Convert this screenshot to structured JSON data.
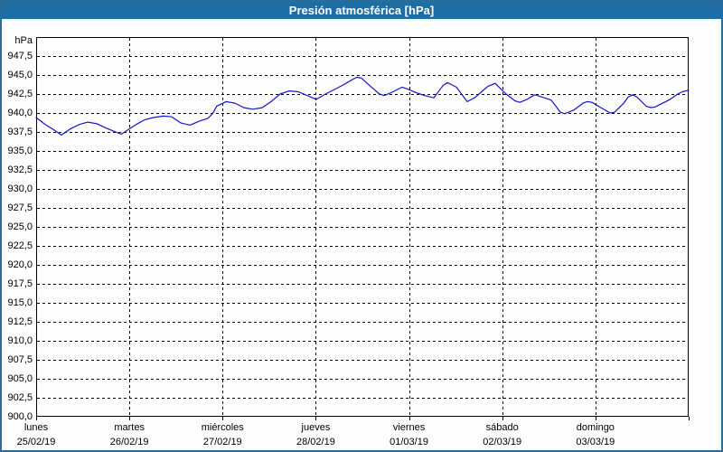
{
  "title_bar": {
    "text": "Presión atmosférica [hPa]"
  },
  "colors": {
    "title-bar-bg": "#1D6EA5",
    "title-text": "#FFFFFF",
    "window-border": "#2A6D9A",
    "window-bg": "#FDFEFD",
    "label-text": "#000000",
    "grid": "#000000",
    "line": "#1414C8"
  },
  "chart_data": {
    "type": "line",
    "title": "Presión atmosférica [hPa]",
    "ylabel": "hPa",
    "unit_label": "hPa",
    "ylim": [
      900,
      950
    ],
    "ytick_min": 900.0,
    "ytick_max": 947.5,
    "ytick_step": 2.5,
    "decimal_separator": ",",
    "ytick_labels": [
      "947,5",
      "945,0",
      "942,5",
      "940,0",
      "937,5",
      "935,0",
      "932,5",
      "930,0",
      "927,5",
      "925,0",
      "922,5",
      "920,0",
      "917,5",
      "915,0",
      "912,5",
      "910,0",
      "907,5",
      "905,0",
      "902,5",
      "900,0"
    ],
    "grid": "dashed",
    "legend": "none",
    "days_total": 7,
    "hours_total": 168,
    "x_days": [
      {
        "name": "lunes",
        "date": "25/02/19"
      },
      {
        "name": "martes",
        "date": "26/02/19"
      },
      {
        "name": "miércoles",
        "date": "27/02/19"
      },
      {
        "name": "jueves",
        "date": "28/02/19"
      },
      {
        "name": "viernes",
        "date": "01/03/19"
      },
      {
        "name": "sábado",
        "date": "02/03/19"
      },
      {
        "name": "domingo",
        "date": "03/03/19"
      }
    ],
    "series": [
      {
        "name": "Presión atmosférica",
        "x_unit": "hours_from_start",
        "points": [
          [
            0.0,
            939.4
          ],
          [
            2.3,
            938.5
          ],
          [
            4.2,
            937.9
          ],
          [
            6.5,
            937.1
          ],
          [
            8.8,
            937.9
          ],
          [
            11.2,
            938.5
          ],
          [
            13.3,
            938.8
          ],
          [
            15.6,
            938.6
          ],
          [
            18.1,
            938.0
          ],
          [
            20.0,
            937.6
          ],
          [
            21.9,
            937.2
          ],
          [
            24.0,
            937.9
          ],
          [
            26.1,
            938.6
          ],
          [
            27.9,
            939.1
          ],
          [
            30.2,
            939.4
          ],
          [
            32.8,
            939.6
          ],
          [
            34.9,
            939.5
          ],
          [
            37.2,
            938.7
          ],
          [
            39.6,
            938.4
          ],
          [
            41.9,
            938.9
          ],
          [
            44.2,
            939.3
          ],
          [
            45.4,
            939.9
          ],
          [
            46.5,
            940.9
          ],
          [
            48.9,
            941.5
          ],
          [
            51.2,
            941.3
          ],
          [
            53.5,
            940.7
          ],
          [
            55.8,
            940.5
          ],
          [
            58.2,
            940.7
          ],
          [
            60.5,
            941.5
          ],
          [
            62.8,
            942.5
          ],
          [
            65.2,
            942.9
          ],
          [
            67.5,
            942.8
          ],
          [
            69.8,
            942.3
          ],
          [
            72.1,
            941.8
          ],
          [
            74.5,
            942.5
          ],
          [
            76.8,
            943.1
          ],
          [
            79.1,
            943.7
          ],
          [
            81.4,
            944.4
          ],
          [
            82.6,
            944.7
          ],
          [
            83.8,
            944.6
          ],
          [
            86.1,
            943.5
          ],
          [
            88.4,
            942.5
          ],
          [
            89.6,
            942.3
          ],
          [
            91.9,
            942.8
          ],
          [
            94.2,
            943.4
          ],
          [
            95.4,
            943.2
          ],
          [
            97.7,
            942.7
          ],
          [
            100.0,
            942.3
          ],
          [
            102.4,
            942.0
          ],
          [
            104.7,
            943.6
          ],
          [
            105.9,
            944.0
          ],
          [
            108.2,
            943.4
          ],
          [
            109.8,
            942.3
          ],
          [
            111.0,
            941.5
          ],
          [
            112.9,
            942.0
          ],
          [
            114.7,
            942.8
          ],
          [
            116.3,
            943.5
          ],
          [
            118.2,
            943.9
          ],
          [
            119.4,
            943.3
          ],
          [
            121.0,
            942.5
          ],
          [
            123.3,
            941.6
          ],
          [
            124.5,
            941.4
          ],
          [
            126.4,
            941.8
          ],
          [
            128.4,
            942.4
          ],
          [
            130.3,
            942.1
          ],
          [
            132.6,
            941.7
          ],
          [
            135.0,
            940.1
          ],
          [
            136.1,
            939.9
          ],
          [
            138.5,
            940.4
          ],
          [
            140.8,
            941.3
          ],
          [
            141.9,
            941.5
          ],
          [
            143.1,
            941.4
          ],
          [
            145.4,
            940.7
          ],
          [
            147.8,
            940.0
          ],
          [
            148.9,
            940.1
          ],
          [
            151.3,
            941.3
          ],
          [
            152.4,
            942.1
          ],
          [
            153.6,
            942.4
          ],
          [
            154.7,
            942.1
          ],
          [
            155.9,
            941.5
          ],
          [
            157.0,
            940.9
          ],
          [
            158.2,
            940.7
          ],
          [
            159.4,
            940.8
          ],
          [
            160.5,
            941.1
          ],
          [
            162.9,
            941.7
          ],
          [
            165.2,
            942.5
          ],
          [
            166.4,
            942.8
          ],
          [
            168.0,
            943.0
          ]
        ]
      }
    ]
  }
}
